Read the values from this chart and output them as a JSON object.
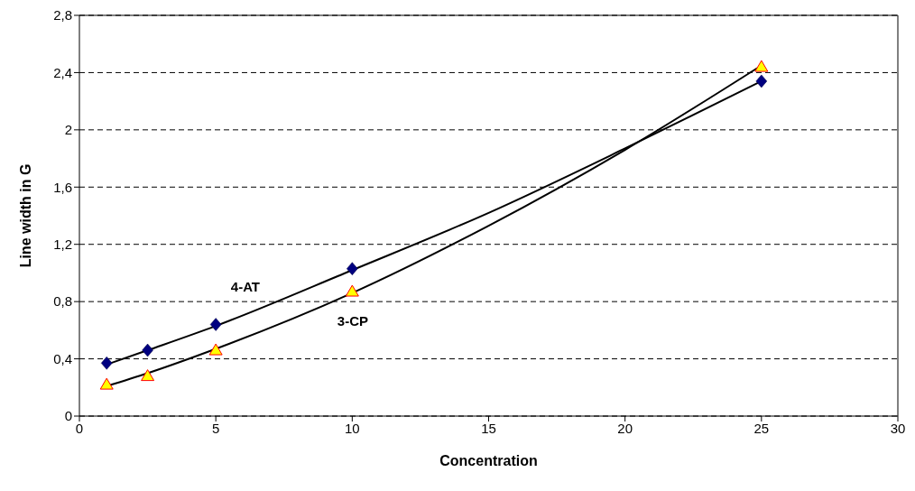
{
  "chart_data": {
    "type": "scatter",
    "xlabel": "Concentration",
    "ylabel": "Line width in G",
    "xlim": [
      0,
      30
    ],
    "xticks": [
      0,
      5,
      10,
      15,
      20,
      25,
      30
    ],
    "ylim": [
      0,
      2.8
    ],
    "yticks": [
      0,
      {
        "value": 0.4,
        "label": "0,4"
      },
      {
        "value": 0.8,
        "label": "0,8"
      },
      {
        "value": 1.2,
        "label": "1,2"
      },
      {
        "value": 1.6,
        "label": "1,6"
      },
      2,
      {
        "value": 2.4,
        "label": "2,4"
      },
      {
        "value": 2.8,
        "label": "2,8"
      }
    ],
    "grid": "y",
    "legend": false,
    "series": [
      {
        "type": "line",
        "color": "#000000",
        "line_style": "solid",
        "marker": "none",
        "x": [
          1,
          2.5,
          5,
          10,
          15,
          20,
          25
        ],
        "values": [
          0.36,
          0.46,
          0.63,
          1.02,
          1.42,
          1.87,
          2.34
        ]
      },
      {
        "type": "line",
        "color": "#000000",
        "line_style": "solid",
        "marker": "none",
        "x": [
          1,
          2.5,
          5,
          10,
          15,
          20,
          25
        ],
        "values": [
          0.21,
          0.3,
          0.47,
          0.86,
          1.33,
          1.86,
          2.45
        ]
      },
      {
        "name": "4-AT",
        "color": "#000080",
        "marker": "diamond",
        "x": [
          1,
          2.5,
          5,
          10,
          25
        ],
        "values": [
          0.37,
          0.46,
          0.64,
          1.03,
          2.34
        ]
      },
      {
        "name": "3-CP",
        "color": "#ffff00",
        "marker": "triangle",
        "x": [
          1,
          2.5,
          5,
          10,
          25
        ],
        "values": [
          0.22,
          0.28,
          0.46,
          0.87,
          2.44
        ]
      }
    ]
  }
}
